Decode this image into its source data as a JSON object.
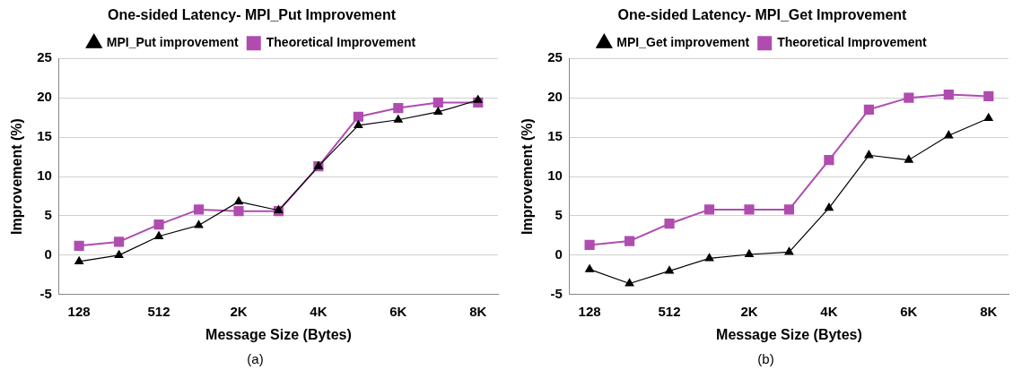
{
  "chart_data": [
    {
      "type": "line",
      "title": "One-sided Latency- MPI_Put Improvement",
      "xlabel": "Message Size (Bytes)",
      "ylabel": "Improvement (%)",
      "categories": [
        "128",
        null,
        "512",
        null,
        "2K",
        null,
        "4K",
        null,
        "6K",
        null,
        "8K"
      ],
      "series": [
        {
          "name": "MPI_Put improvement",
          "color": "#000000",
          "marker": "triangle",
          "values": [
            -0.8,
            0,
            2.4,
            3.8,
            6.8,
            5.7,
            11.3,
            16.5,
            17.2,
            18.2,
            19.7
          ]
        },
        {
          "name": "Theoretical Improvement",
          "color": "#b04cb0",
          "marker": "square",
          "values": [
            1.2,
            1.7,
            3.9,
            5.8,
            5.6,
            5.6,
            11.3,
            17.6,
            18.7,
            19.4,
            19.4
          ]
        }
      ],
      "ylim": [
        -5,
        25
      ],
      "yticks": [
        -5,
        0,
        5,
        10,
        15,
        20,
        25
      ],
      "grid": "y",
      "legend": "top",
      "annotations": [
        "(a)"
      ]
    },
    {
      "type": "line",
      "title": "One-sided Latency- MPI_Get Improvement",
      "xlabel": "Message Size (Bytes)",
      "ylabel": "Improvement (%)",
      "categories": [
        "128",
        null,
        "512",
        null,
        "2K",
        null,
        "4K",
        null,
        "6K",
        null,
        "8K"
      ],
      "series": [
        {
          "name": "MPI_Get improvement",
          "color": "#000000",
          "marker": "triangle",
          "values": [
            -1.8,
            -3.6,
            -2.0,
            -0.4,
            0.1,
            0.4,
            6.0,
            12.7,
            12.1,
            15.2,
            17.4
          ]
        },
        {
          "name": "Theoretical Improvement",
          "color": "#b04cb0",
          "marker": "square",
          "values": [
            1.3,
            1.8,
            4.0,
            5.8,
            5.8,
            5.8,
            12.1,
            18.5,
            20.0,
            20.4,
            20.2
          ]
        }
      ],
      "ylim": [
        -5,
        25
      ],
      "yticks": [
        -5,
        0,
        5,
        10,
        15,
        20,
        25
      ],
      "grid": "y",
      "legend": "top",
      "annotations": [
        "(b)"
      ]
    }
  ]
}
